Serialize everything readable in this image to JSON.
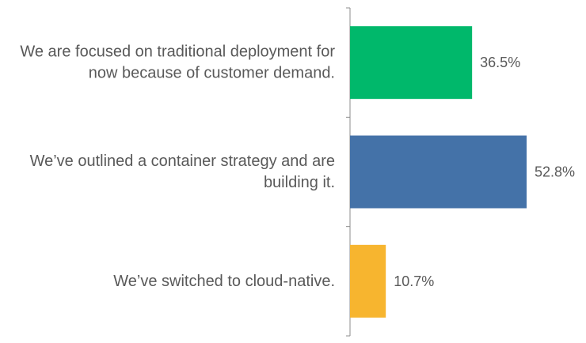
{
  "chart_data": {
    "type": "bar",
    "orientation": "horizontal",
    "categories": [
      [
        "We are focused on traditional deployment for",
        "now because of customer demand."
      ],
      [
        "We’ve outlined a container strategy and are",
        "building it."
      ],
      [
        "We’ve switched to cloud-native."
      ]
    ],
    "values": [
      36.5,
      52.8,
      10.7
    ],
    "data_labels": [
      "36.5%",
      "52.8%",
      "10.7%"
    ],
    "colors": [
      "#00B86B",
      "#4472A8",
      "#F7B52F"
    ],
    "unit": "%",
    "xlim": [
      0,
      60
    ],
    "grid": false,
    "legend": false
  }
}
